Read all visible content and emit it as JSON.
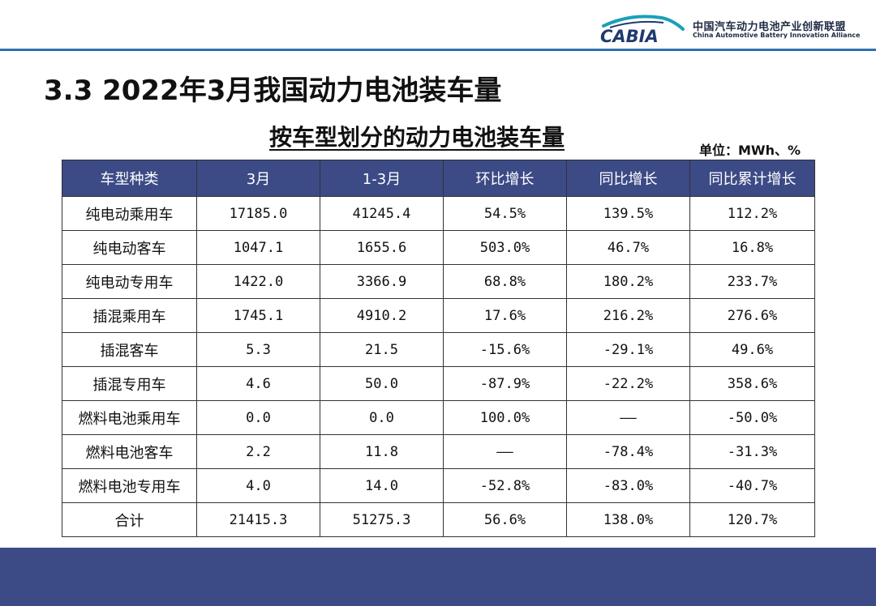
{
  "logo": {
    "mark_text": "CABIA",
    "cn": "中国汽车动力电池产业创新联盟",
    "en": "China Automotive Battery Innovation Alliance"
  },
  "heading": "3.3  2022年3月我国动力电池装车量",
  "subheading": "按车型划分的动力电池装车量",
  "unit": "单位：MWh、%",
  "table": {
    "headers": [
      "车型种类",
      "3月",
      "1-3月",
      "环比增长",
      "同比增长",
      "同比累计增长"
    ],
    "rows": [
      [
        "纯电动乘用车",
        "17185.0",
        "41245.4",
        "54.5%",
        "139.5%",
        "112.2%"
      ],
      [
        "纯电动客车",
        "1047.1",
        "1655.6",
        "503.0%",
        "46.7%",
        "16.8%"
      ],
      [
        "纯电动专用车",
        "1422.0",
        "3366.9",
        "68.8%",
        "180.2%",
        "233.7%"
      ],
      [
        "插混乘用车",
        "1745.1",
        "4910.2",
        "17.6%",
        "216.2%",
        "276.6%"
      ],
      [
        "插混客车",
        "5.3",
        "21.5",
        "-15.6%",
        "-29.1%",
        "49.6%"
      ],
      [
        "插混专用车",
        "4.6",
        "50.0",
        "-87.9%",
        "-22.2%",
        "358.6%"
      ],
      [
        "燃料电池乘用车",
        "0.0",
        "0.0",
        "100.0%",
        "——",
        "-50.0%"
      ],
      [
        "燃料电池客车",
        "2.2",
        "11.8",
        "——",
        "-78.4%",
        "-31.3%"
      ],
      [
        "燃料电池专用车",
        "4.0",
        "14.0",
        "-52.8%",
        "-83.0%",
        "-40.7%"
      ],
      [
        "合计",
        "21415.3",
        "51275.3",
        "56.6%",
        "138.0%",
        "120.7%"
      ]
    ]
  },
  "colors": {
    "header_bg": "#3c4a86",
    "rule": "#2f6fb0",
    "logo_teal": "#1aa0b8",
    "logo_navy": "#1f3a6e"
  }
}
